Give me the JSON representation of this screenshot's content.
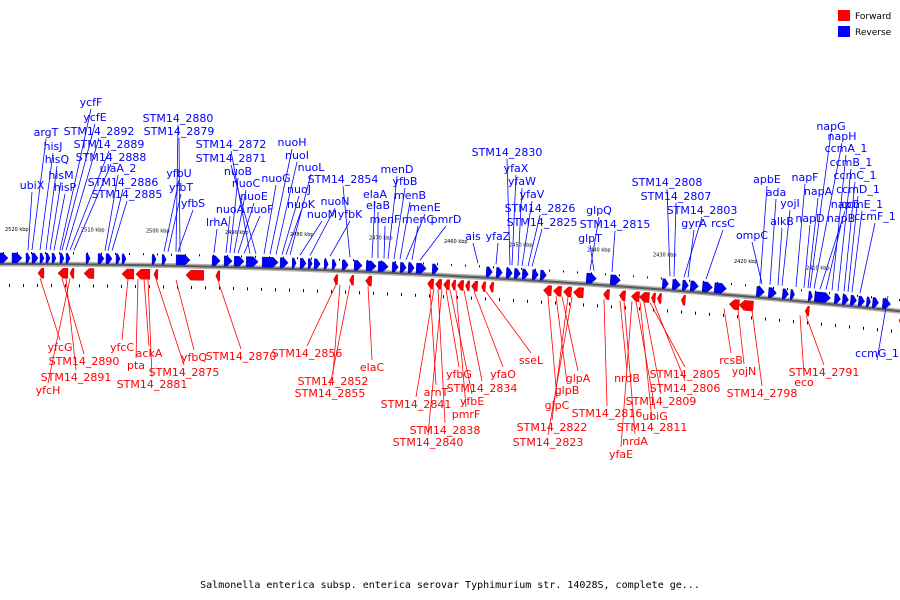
{
  "legend": [
    {
      "label": "Forward",
      "color": "#ff0000"
    },
    {
      "label": "Reverse",
      "color": "#0000ff"
    }
  ],
  "caption": "Salmonella enterica subsp. enterica serovar Typhimurium str. 14028S, complete ge...",
  "ruler_ticks": [
    "2520 kbp",
    "2510 kbp",
    "2500 kbp",
    "2490 kbp",
    "2480 kbp",
    "2470 kbp",
    "2460 kbp",
    "2450 kbp",
    "2440 kbp",
    "2430 kbp",
    "2420 kbp",
    "2410 kbp"
  ],
  "colors": {
    "forward": "#ff0000",
    "reverse": "#0000ff",
    "backbone": "#808080",
    "tick": "#000000"
  },
  "reverse_labels": [
    "ubiX",
    "argT",
    "hisJ",
    "hisQ",
    "hisM",
    "hisP",
    "ulaA_2",
    "ycfF",
    "ycfE",
    "STM14_2892",
    "STM14_2889",
    "STM14_2888",
    "STM14_2886",
    "STM14_2885",
    "yfbU",
    "yfbT",
    "yfbS",
    "STM14_2880",
    "STM14_2879",
    "lrhA",
    "nuoA",
    "nuoB",
    "nuoC",
    "nuoE",
    "nuoF",
    "STM14_2872",
    "STM14_2871",
    "nuoG",
    "nuoH",
    "nuoI",
    "nuoJ",
    "nuoK",
    "nuoL",
    "nuoM",
    "nuoN",
    "yfbK",
    "STM14_2854",
    "elaA",
    "elaB",
    "menF",
    "menD",
    "yfbB",
    "menB",
    "menE",
    "menC",
    "pmrD",
    "ais",
    "yfaZ",
    "STM14_2830",
    "yfaX",
    "yfaW",
    "yfaV",
    "STM14_2826",
    "STM14_2825",
    "glpQ",
    "glpT",
    "STM14_2815",
    "STM14_2808",
    "STM14_2807",
    "STM14_2803",
    "gyrA",
    "rcsC",
    "apbE",
    "ompC",
    "ada",
    "alkB",
    "yojI",
    "napF",
    "napD",
    "napA",
    "napG",
    "napH",
    "napC",
    "napB",
    "ccmA_1",
    "ccmB_1",
    "ccmC_1",
    "ccmD_1",
    "ccmE_1",
    "ccmF_1",
    "ccmG_1"
  ],
  "forward_labels": [
    "yfcG",
    "STM14_2890",
    "STM14_2891",
    "yfcH",
    "yfcC",
    "pta",
    "ackA",
    "STM14_2881",
    "STM14_2875",
    "yfbQ",
    "STM14_2870",
    "STM14_2856",
    "STM14_2852",
    "STM14_2855",
    "elaC",
    "arnT",
    "STM14_2841",
    "STM14_2838",
    "STM14_2840",
    "yfbG",
    "yfbE",
    "pmrF",
    "STM14_2834",
    "yfaO",
    "sseL",
    "glpC",
    "glpB",
    "glpA",
    "STM14_2822",
    "STM14_2823",
    "STM14_2816",
    "nrdB",
    "nrdA",
    "yfaE",
    "ubiG",
    "STM14_2811",
    "STM14_2809",
    "STM14_2805",
    "STM14_2806",
    "rcsB",
    "yojN",
    "STM14_2798",
    "eco",
    "STM14_2791"
  ]
}
